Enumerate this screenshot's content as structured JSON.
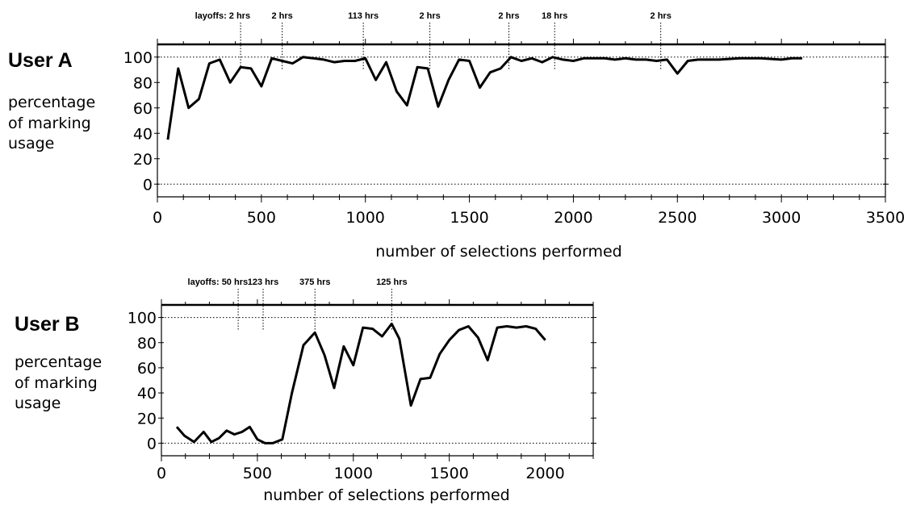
{
  "chart_data": [
    {
      "type": "line",
      "title": "User A",
      "ylabel_lines": [
        "percentage",
        "of marking",
        "usage"
      ],
      "xlabel": "number of selections performed",
      "xlim": [
        0,
        3500
      ],
      "ylim": [
        -10,
        110
      ],
      "xticks": [
        0,
        500,
        1000,
        1500,
        2000,
        2500,
        3000,
        3500
      ],
      "xtick_labels": [
        "0",
        "500",
        "1000",
        "1500",
        "2000",
        "2500",
        "3000",
        "3500"
      ],
      "yticks": [
        0,
        20,
        40,
        60,
        80,
        100
      ],
      "ytick_labels": [
        "0",
        "20",
        "40",
        "60",
        "80",
        "100"
      ],
      "reference_lines": [
        0,
        100
      ],
      "layoffs": [
        {
          "x": 400,
          "label": "layoffs: 2 hrs"
        },
        {
          "x": 600,
          "label": "2 hrs"
        },
        {
          "x": 990,
          "label": "113 hrs"
        },
        {
          "x": 1310,
          "label": "2 hrs"
        },
        {
          "x": 1690,
          "label": "2 hrs"
        },
        {
          "x": 1910,
          "label": "18 hrs"
        },
        {
          "x": 2420,
          "label": "2 hrs"
        }
      ],
      "series": [
        {
          "x": [
            50,
            100,
            150,
            200,
            250,
            300,
            350,
            400,
            450,
            500,
            550,
            600,
            650,
            700,
            750,
            800,
            850,
            900,
            950,
            1000,
            1050,
            1100,
            1150,
            1200,
            1250,
            1300,
            1350,
            1400,
            1450,
            1500,
            1550,
            1600,
            1650,
            1700,
            1750,
            1800,
            1850,
            1900,
            1950,
            2000,
            2050,
            2100,
            2150,
            2200,
            2250,
            2300,
            2350,
            2400,
            2450,
            2500,
            2550,
            2600,
            2700,
            2800,
            2900,
            3000,
            3050,
            3100
          ],
          "y": [
            35,
            91,
            60,
            67,
            95,
            98,
            80,
            92,
            91,
            77,
            99,
            97,
            95,
            100,
            99,
            98,
            96,
            97,
            97,
            99,
            82,
            96,
            73,
            62,
            92,
            91,
            61,
            82,
            98,
            97,
            76,
            88,
            91,
            100,
            97,
            99,
            96,
            100,
            98,
            97,
            99,
            99,
            99,
            98,
            99,
            98,
            98,
            97,
            98,
            87,
            97,
            98,
            98,
            99,
            99,
            98,
            99,
            99
          ]
        }
      ]
    },
    {
      "type": "line",
      "title": "User B",
      "ylabel_lines": [
        "percentage",
        "of marking",
        "usage"
      ],
      "xlabel": "number of selections performed",
      "xlim": [
        0,
        2250
      ],
      "ylim": [
        -10,
        110
      ],
      "xticks": [
        0,
        500,
        1000,
        1500,
        2000
      ],
      "xtick_labels": [
        "0",
        "500",
        "1000",
        "1500",
        "2000"
      ],
      "yticks": [
        0,
        20,
        40,
        60,
        80,
        100
      ],
      "ytick_labels": [
        "0",
        "20",
        "40",
        "60",
        "80",
        "100"
      ],
      "reference_lines": [
        0,
        100
      ],
      "layoffs": [
        {
          "x": 400,
          "label": "layoffs: 50 hrs"
        },
        {
          "x": 530,
          "label": "123 hrs"
        },
        {
          "x": 800,
          "label": "375 hrs"
        },
        {
          "x": 1200,
          "label": "125 hrs"
        }
      ],
      "series": [
        {
          "x": [
            80,
            120,
            170,
            220,
            260,
            300,
            340,
            380,
            420,
            460,
            500,
            540,
            580,
            630,
            680,
            740,
            800,
            850,
            900,
            950,
            1000,
            1050,
            1100,
            1150,
            1200,
            1240,
            1300,
            1350,
            1400,
            1450,
            1500,
            1550,
            1600,
            1650,
            1700,
            1750,
            1800,
            1850,
            1900,
            1950,
            2000
          ],
          "y": [
            13,
            6,
            1,
            9,
            1,
            4,
            10,
            7,
            9,
            13,
            3,
            0,
            0,
            3,
            40,
            78,
            88,
            70,
            44,
            77,
            62,
            92,
            91,
            85,
            95,
            83,
            30,
            51,
            52,
            71,
            82,
            90,
            93,
            84,
            66,
            92,
            93,
            92,
            93,
            91,
            82
          ]
        }
      ]
    }
  ]
}
